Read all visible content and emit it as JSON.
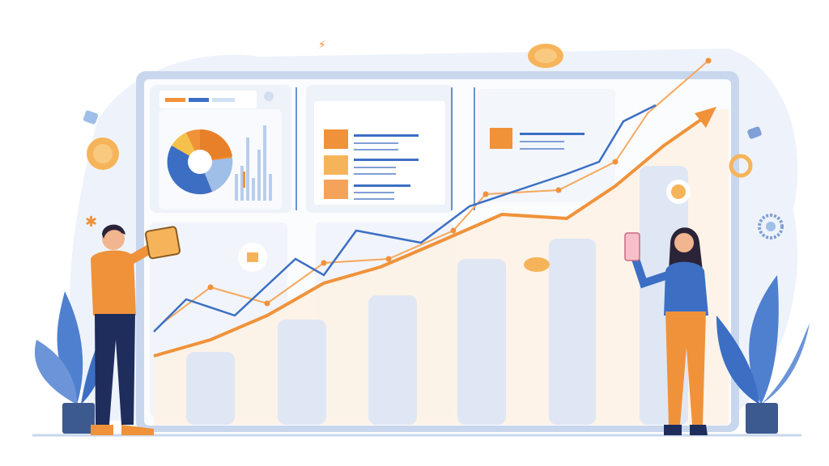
{
  "illustration": {
    "theme": "business growth dashboard",
    "colors": {
      "background": "#ffffff",
      "blob": "#eaf0f9",
      "frame": "#c9d7ee",
      "panel": "#f3f6fb",
      "card": "#ffffff",
      "orange": "#f0923a",
      "orange_light": "#f7c089",
      "blue": "#3c6fc4",
      "blue_light": "#9fbfe8",
      "navy": "#1f2d5c",
      "bar": "#dfe7f4",
      "coin": "#f6b45a",
      "plant": "#4f7fcf",
      "pot": "#3d5a8f",
      "skin": "#f1b58f",
      "hair": "#2b2438"
    },
    "icons": [
      "pie-chart-icon",
      "bar-chart-icon",
      "trend-arrow-icon",
      "coin-icon",
      "gear-icon",
      "plant-icon",
      "tablet-icon",
      "phone-icon"
    ],
    "people": [
      "man-holding-tablet",
      "woman-holding-phone"
    ]
  }
}
